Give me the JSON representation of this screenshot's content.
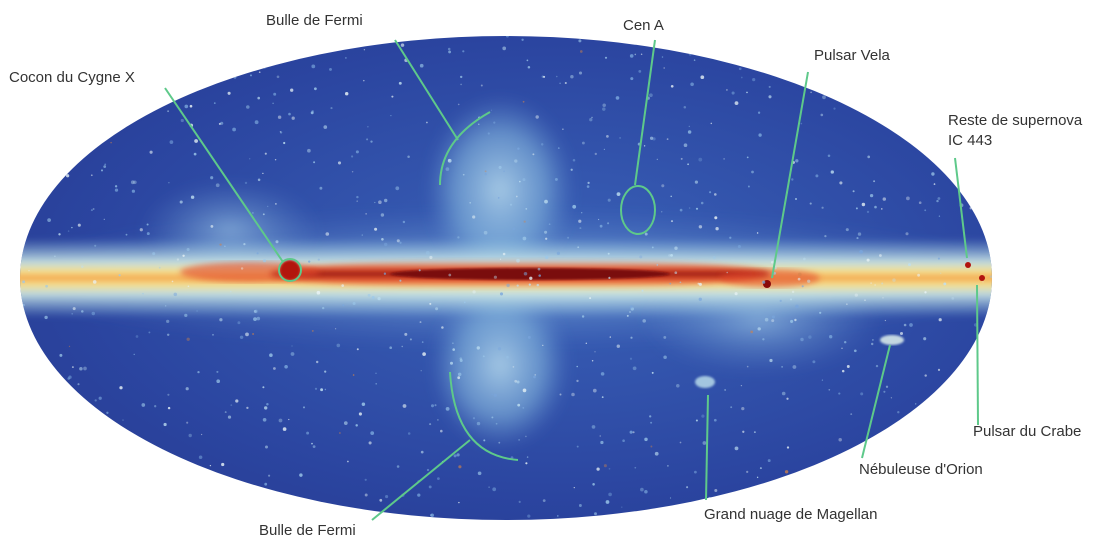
{
  "colors": {
    "leader": "#5ec98a",
    "sky_background": "#2a3f9a",
    "galactic_plane_core": "#7a0a0a",
    "galactic_plane_mid": "#e2462a",
    "galactic_plane_outer": "#f7e08a",
    "diffuse_emission": "#9fd0e8",
    "label_text": "#333333"
  },
  "labels": {
    "bulle_fermi_top": "Bulle de Fermi",
    "cen_a": "Cen A",
    "cocon_cygne": "Cocon du Cygne X",
    "pulsar_vela": "Pulsar Vela",
    "reste_supernova_line1": "Reste de supernova",
    "reste_supernova_line2": "IC 443",
    "pulsar_crabe": "Pulsar du Crabe",
    "nebuleuse_orion": "Nébuleuse d'Orion",
    "grand_nuage": "Grand nuage de Magellan",
    "bulle_fermi_bottom": "Bulle de Fermi"
  }
}
